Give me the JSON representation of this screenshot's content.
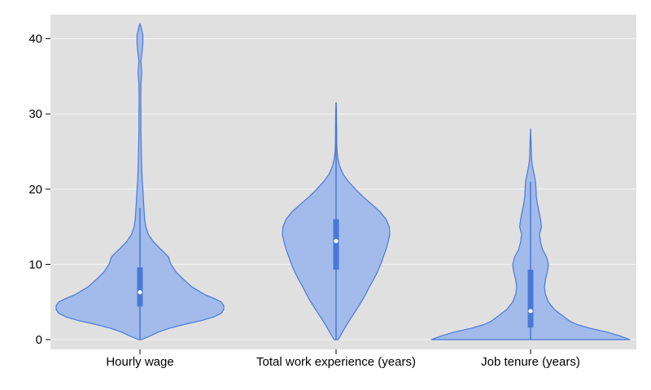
{
  "chart_data": {
    "type": "violin",
    "title": "",
    "xlabel": "",
    "ylabel": "",
    "ylim": [
      0,
      42
    ],
    "yticks": [
      0,
      10,
      20,
      30,
      40
    ],
    "grid": true,
    "colors": {
      "plot_background": "#e0e0e0",
      "grid": "#f5f5f5",
      "fill": "#a2bbea",
      "stroke": "#4a78d6",
      "box": "#4a78d6",
      "median": "#ffffff"
    },
    "categories": [
      "Hourly wage",
      "Total work experience (years)",
      "Job tenure (years)"
    ],
    "series": [
      {
        "category": "Hourly wage",
        "min": 0,
        "max": 42,
        "whisker_low": 0,
        "whisker_high": 17.5,
        "q1": 4.4,
        "median": 6.3,
        "q3": 9.6,
        "density": [
          [
            0,
            0.02
          ],
          [
            0.5,
            0.12
          ],
          [
            1,
            0.22
          ],
          [
            1.5,
            0.35
          ],
          [
            2,
            0.52
          ],
          [
            2.5,
            0.72
          ],
          [
            3,
            0.88
          ],
          [
            3.5,
            0.97
          ],
          [
            4,
            1.0
          ],
          [
            4.5,
            1.0
          ],
          [
            5,
            0.97
          ],
          [
            5.5,
            0.88
          ],
          [
            6,
            0.77
          ],
          [
            7,
            0.62
          ],
          [
            8,
            0.52
          ],
          [
            9,
            0.43
          ],
          [
            10,
            0.37
          ],
          [
            11,
            0.34
          ],
          [
            12,
            0.25
          ],
          [
            13,
            0.16
          ],
          [
            14,
            0.1
          ],
          [
            15,
            0.07
          ],
          [
            16,
            0.055
          ],
          [
            17,
            0.05
          ],
          [
            18,
            0.045
          ],
          [
            19,
            0.04
          ],
          [
            20,
            0.035
          ],
          [
            21,
            0.028
          ],
          [
            22,
            0.024
          ],
          [
            24,
            0.018
          ],
          [
            26,
            0.015
          ],
          [
            28,
            0.012
          ],
          [
            30,
            0.012
          ],
          [
            32,
            0.01
          ],
          [
            34,
            0.012
          ],
          [
            35.5,
            0.022
          ],
          [
            37,
            0.012
          ],
          [
            38.5,
            0.028
          ],
          [
            39.5,
            0.035
          ],
          [
            40.5,
            0.035
          ],
          [
            41.5,
            0.015
          ],
          [
            42,
            0.0
          ]
        ]
      },
      {
        "category": "Total work experience (years)",
        "min": 0,
        "max": 31.5,
        "whisker_low": 0,
        "whisker_high": 31.5,
        "q1": 9.3,
        "median": 13.1,
        "q3": 16.0,
        "density": [
          [
            0,
            0.04
          ],
          [
            1,
            0.12
          ],
          [
            2,
            0.2
          ],
          [
            3,
            0.29
          ],
          [
            4,
            0.38
          ],
          [
            5,
            0.47
          ],
          [
            6,
            0.55
          ],
          [
            7,
            0.62
          ],
          [
            8,
            0.7
          ],
          [
            9,
            0.77
          ],
          [
            10,
            0.83
          ],
          [
            11,
            0.88
          ],
          [
            12,
            0.93
          ],
          [
            13,
            0.97
          ],
          [
            14,
            1.0
          ],
          [
            15,
            0.99
          ],
          [
            16,
            0.93
          ],
          [
            17,
            0.82
          ],
          [
            18,
            0.66
          ],
          [
            19,
            0.5
          ],
          [
            20,
            0.36
          ],
          [
            21,
            0.23
          ],
          [
            22,
            0.13
          ],
          [
            23,
            0.07
          ],
          [
            24,
            0.035
          ],
          [
            25,
            0.018
          ],
          [
            26,
            0.012
          ],
          [
            28,
            0.01
          ],
          [
            30,
            0.008
          ],
          [
            31.5,
            0.0
          ]
        ]
      },
      {
        "category": "Job tenure (years)",
        "min": 0,
        "max": 28,
        "whisker_low": 0,
        "whisker_high": 21,
        "q1": 1.6,
        "median": 3.8,
        "q3": 9.3,
        "density": [
          [
            0,
            1.0
          ],
          [
            0.5,
            0.9
          ],
          [
            1,
            0.77
          ],
          [
            1.5,
            0.6
          ],
          [
            2,
            0.47
          ],
          [
            2.5,
            0.39
          ],
          [
            3,
            0.34
          ],
          [
            4,
            0.24
          ],
          [
            5,
            0.18
          ],
          [
            6,
            0.15
          ],
          [
            7,
            0.14
          ],
          [
            8,
            0.15
          ],
          [
            9,
            0.17
          ],
          [
            10,
            0.18
          ],
          [
            11,
            0.16
          ],
          [
            12,
            0.12
          ],
          [
            13,
            0.1
          ],
          [
            14,
            0.09
          ],
          [
            15,
            0.11
          ],
          [
            16,
            0.1
          ],
          [
            17,
            0.085
          ],
          [
            18,
            0.07
          ],
          [
            19,
            0.058
          ],
          [
            20,
            0.055
          ],
          [
            21,
            0.05
          ],
          [
            22,
            0.035
          ],
          [
            23,
            0.02
          ],
          [
            24,
            0.01
          ],
          [
            26,
            0.006
          ],
          [
            28,
            0.0
          ]
        ]
      }
    ]
  }
}
